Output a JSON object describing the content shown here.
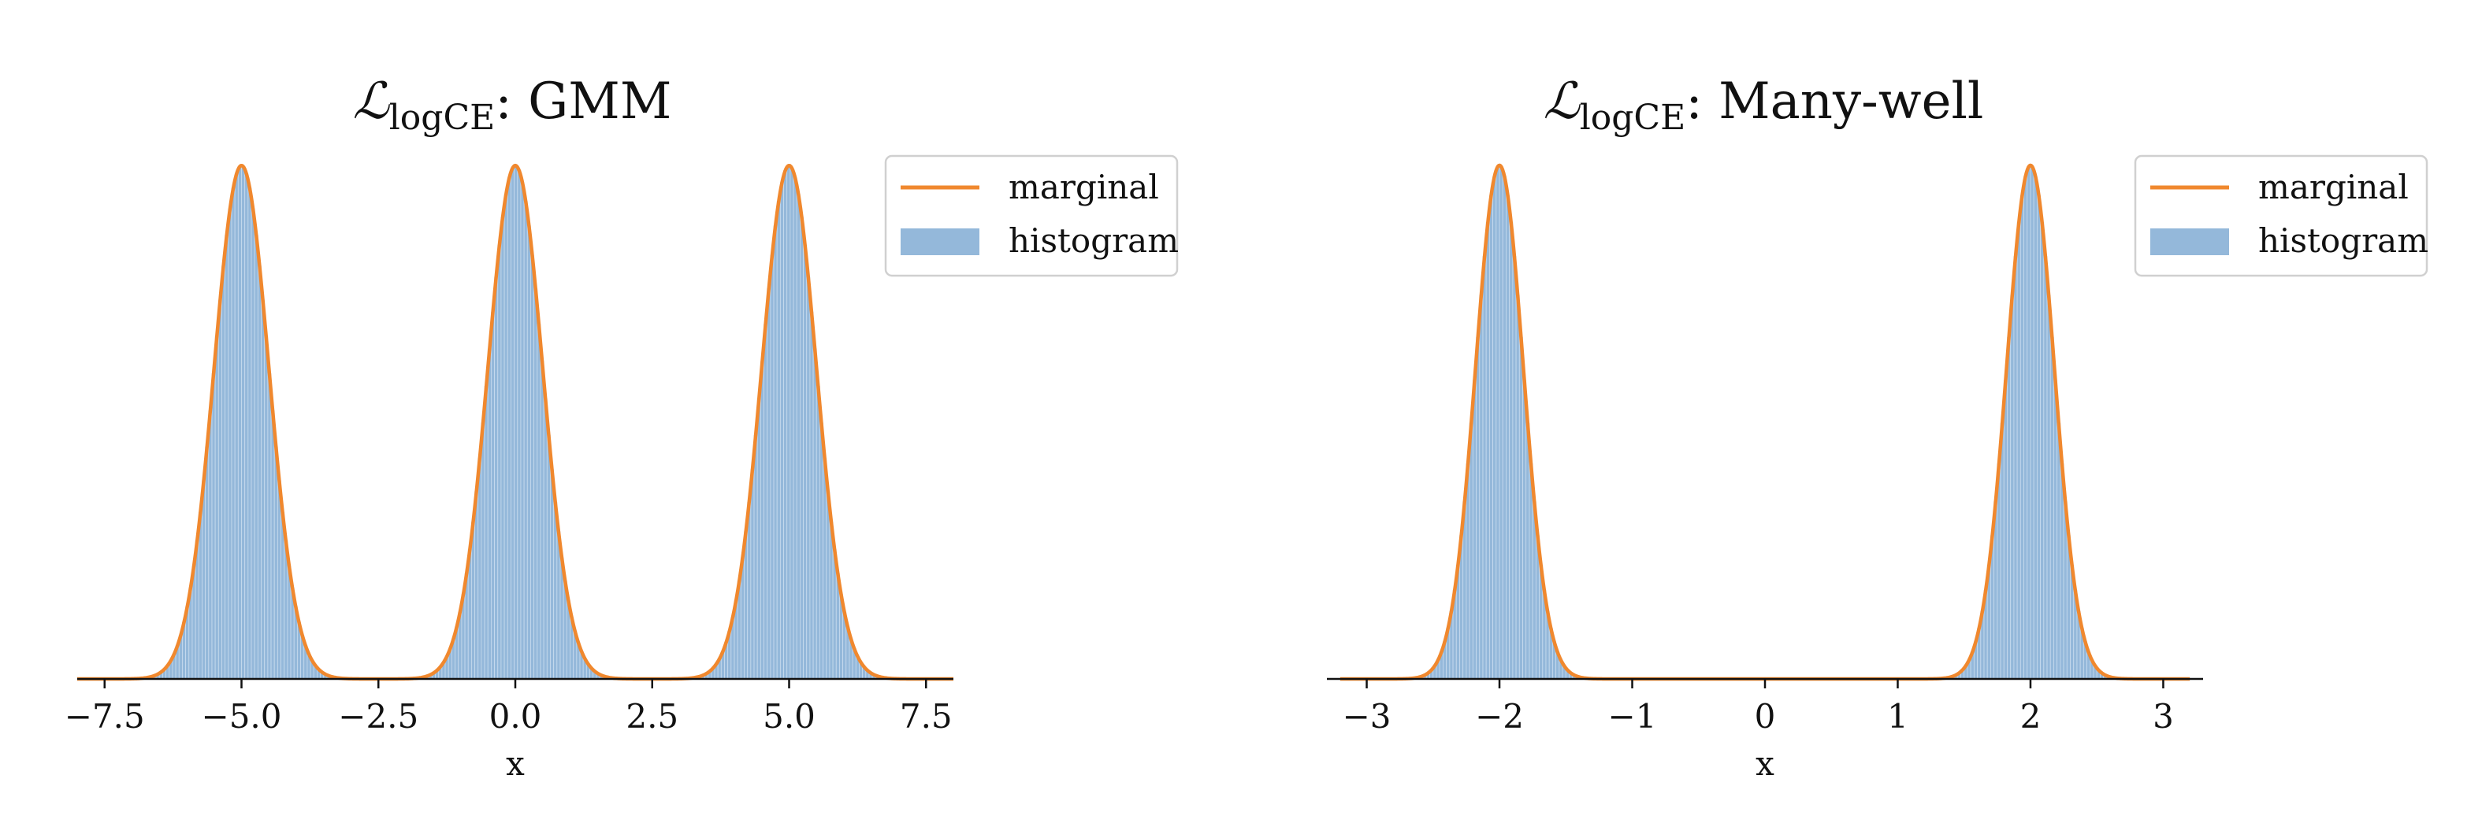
{
  "chart_data": [
    {
      "type": "bar",
      "title": {
        "symbol": "ℒ",
        "subscript": "logCE",
        "text": ": GMM"
      },
      "xlabel": "x",
      "ylabel": "",
      "xlim": [
        -8.0,
        8.0
      ],
      "x_ticks": [
        -7.5,
        -5.0,
        -2.5,
        0.0,
        2.5,
        5.0,
        7.5
      ],
      "x_tick_labels": [
        "−7.5",
        "−5.0",
        "−2.5",
        "0.0",
        "2.5",
        "5.0",
        "7.5"
      ],
      "yaxis_visible": false,
      "marginal": {
        "type": "line",
        "mixture": [
          {
            "mean": -5.0,
            "std": 0.5,
            "weight": 0.3333
          },
          {
            "mean": 0.0,
            "std": 0.5,
            "weight": 0.3333
          },
          {
            "mean": 5.0,
            "std": 0.5,
            "weight": 0.3333
          }
        ],
        "peak_density": 0.266
      },
      "histogram": {
        "bin_range": [
          -8.0,
          8.0
        ],
        "bin_width": 0.06
      },
      "legend": {
        "placement": "top-right",
        "entries": [
          {
            "label": "marginal",
            "kind": "line"
          },
          {
            "label": "histogram",
            "kind": "patch"
          }
        ]
      },
      "colors": {
        "marginal": "#f0882e",
        "histogram": "#94b8da",
        "histogram_edge": "#c9dcef"
      }
    },
    {
      "type": "bar",
      "title": {
        "symbol": "ℒ",
        "subscript": "logCE",
        "text": ": Many-well"
      },
      "xlabel": "x",
      "ylabel": "",
      "xlim": [
        -3.3,
        3.3
      ],
      "x_ticks": [
        -3,
        -2,
        -1,
        0,
        1,
        2,
        3
      ],
      "x_tick_labels": [
        "−3",
        "−2",
        "−1",
        "0",
        "1",
        "2",
        "3"
      ],
      "yaxis_visible": false,
      "marginal": {
        "type": "line",
        "mixture": [
          {
            "mean": -2.0,
            "std": 0.18,
            "weight": 0.5
          },
          {
            "mean": 2.0,
            "std": 0.18,
            "weight": 0.5
          }
        ],
        "peak_density": 1.108
      },
      "histogram": {
        "bin_range": [
          -3.2,
          3.2
        ],
        "bin_width": 0.025
      },
      "legend": {
        "placement": "top-right",
        "entries": [
          {
            "label": "marginal",
            "kind": "line"
          },
          {
            "label": "histogram",
            "kind": "patch"
          }
        ]
      },
      "colors": {
        "marginal": "#f0882e",
        "histogram": "#94b8da",
        "histogram_edge": "#c9dcef"
      }
    }
  ]
}
